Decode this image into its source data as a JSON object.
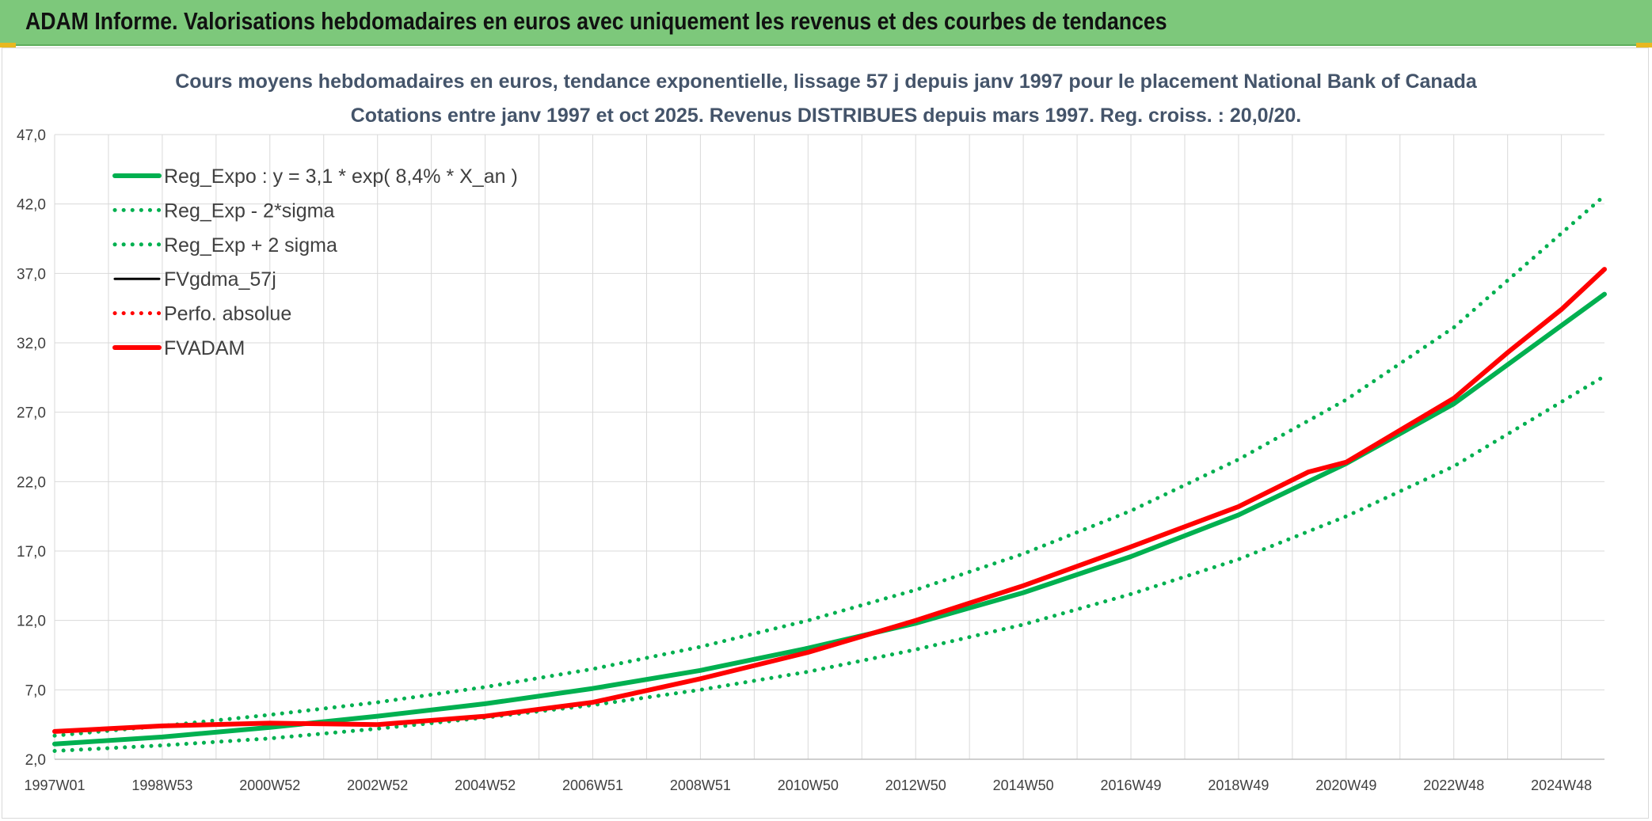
{
  "header": {
    "title": "ADAM Informe. Valorisations hebdomadaires en euros avec uniquement les revenus et des courbes de tendances"
  },
  "chart_data": {
    "type": "line",
    "title": "Cours moyens hebdomadaires en euros, tendance exponentielle, lissage 57 j depuis janv 1997 pour le placement National Bank of Canada",
    "subtitle": "Cotations entre janv 1997 et oct 2025. Revenus DISTRIBUES depuis mars 1997. Reg. croiss. : 20,0/20.",
    "xlabel": "",
    "ylabel": "",
    "ylim": [
      2.0,
      47.0
    ],
    "yticks": [
      "47,0",
      "42,0",
      "37,0",
      "32,0",
      "27,0",
      "22,0",
      "17,0",
      "12,0",
      "7,0",
      "2,0"
    ],
    "xlim": [
      1997.0,
      2025.8
    ],
    "xticks": [
      {
        "label": "1997W01",
        "x": 1997.0
      },
      {
        "label": "1998W53",
        "x": 1999.0
      },
      {
        "label": "2000W52",
        "x": 2001.0
      },
      {
        "label": "2002W52",
        "x": 2003.0
      },
      {
        "label": "2004W52",
        "x": 2005.0
      },
      {
        "label": "2006W51",
        "x": 2007.0
      },
      {
        "label": "2008W51",
        "x": 2009.0
      },
      {
        "label": "2010W50",
        "x": 2011.0
      },
      {
        "label": "2012W50",
        "x": 2013.0
      },
      {
        "label": "2014W50",
        "x": 2015.0
      },
      {
        "label": "2016W49",
        "x": 2017.0
      },
      {
        "label": "2018W49",
        "x": 2019.0
      },
      {
        "label": "2020W49",
        "x": 2021.0
      },
      {
        "label": "2022W48",
        "x": 2023.0
      },
      {
        "label": "2024W48",
        "x": 2025.0
      }
    ],
    "grid": true,
    "legend_position": "top-left",
    "series": [
      {
        "name": "Reg_Expo : y = 3,1 * exp( 8,4% *  X_an )",
        "color": "#00b050",
        "style": "solid",
        "x": [
          1997.0,
          1999.0,
          2001.0,
          2003.0,
          2005.0,
          2007.0,
          2009.0,
          2011.0,
          2013.0,
          2015.0,
          2017.0,
          2019.0,
          2021.0,
          2023.0,
          2025.8
        ],
        "y": [
          3.1,
          3.6,
          4.3,
          5.1,
          6.0,
          7.1,
          8.4,
          10.0,
          11.8,
          14.0,
          16.6,
          19.6,
          23.3,
          27.6,
          35.5
        ]
      },
      {
        "name": "Reg_Exp - 2*sigma",
        "color": "#00b050",
        "style": "dotted",
        "x": [
          1997.0,
          1999.0,
          2001.0,
          2003.0,
          2005.0,
          2007.0,
          2009.0,
          2011.0,
          2013.0,
          2015.0,
          2017.0,
          2019.0,
          2021.0,
          2023.0,
          2025.8
        ],
        "y": [
          2.6,
          3.0,
          3.5,
          4.2,
          5.0,
          5.9,
          7.0,
          8.3,
          9.9,
          11.7,
          13.9,
          16.4,
          19.5,
          23.1,
          29.6
        ]
      },
      {
        "name": "Reg_Exp + 2 sigma",
        "color": "#00b050",
        "style": "dotted",
        "x": [
          1997.0,
          1999.0,
          2001.0,
          2003.0,
          2005.0,
          2007.0,
          2009.0,
          2011.0,
          2013.0,
          2015.0,
          2017.0,
          2019.0,
          2021.0,
          2023.0,
          2025.8
        ],
        "y": [
          3.7,
          4.4,
          5.2,
          6.1,
          7.2,
          8.5,
          10.1,
          12.0,
          14.2,
          16.8,
          19.9,
          23.6,
          27.9,
          33.1,
          42.6
        ]
      },
      {
        "name": "FVgdma_57j",
        "color": "#000000",
        "style": "solid",
        "x": [
          1997.0,
          1999.0,
          2001.0,
          2003.0,
          2005.0,
          2007.0,
          2009.0,
          2011.0,
          2013.0,
          2015.0,
          2017.0,
          2019.0,
          2020.3,
          2021.0,
          2023.0,
          2024.0,
          2025.0,
          2025.8
        ],
        "y": [
          4.0,
          4.4,
          4.6,
          4.5,
          5.1,
          6.1,
          7.8,
          9.7,
          12.0,
          14.5,
          17.3,
          20.2,
          22.7,
          23.4,
          28.0,
          31.3,
          34.4,
          37.3
        ]
      },
      {
        "name": "Perfo. absolue",
        "color": "#ff0000",
        "style": "dotted",
        "x": [
          1997.0,
          1999.0,
          2001.0,
          2003.0,
          2005.0,
          2007.0,
          2009.0,
          2011.0,
          2013.0,
          2015.0,
          2017.0,
          2019.0,
          2020.3,
          2021.0,
          2023.0,
          2024.0,
          2025.0,
          2025.8
        ],
        "y": [
          4.0,
          4.4,
          4.6,
          4.5,
          5.1,
          6.1,
          7.8,
          9.7,
          12.0,
          14.5,
          17.3,
          20.2,
          22.7,
          23.4,
          28.0,
          31.3,
          34.4,
          37.3
        ]
      },
      {
        "name": "FVADAM",
        "color": "#ff0000",
        "style": "solid",
        "x": [
          1997.0,
          1999.0,
          2001.0,
          2003.0,
          2005.0,
          2007.0,
          2009.0,
          2011.0,
          2013.0,
          2015.0,
          2017.0,
          2019.0,
          2020.3,
          2021.0,
          2023.0,
          2024.0,
          2025.0,
          2025.8
        ],
        "y": [
          4.0,
          4.4,
          4.6,
          4.5,
          5.1,
          6.1,
          7.8,
          9.7,
          12.0,
          14.5,
          17.3,
          20.2,
          22.7,
          23.4,
          28.0,
          31.3,
          34.4,
          37.3
        ]
      }
    ]
  }
}
